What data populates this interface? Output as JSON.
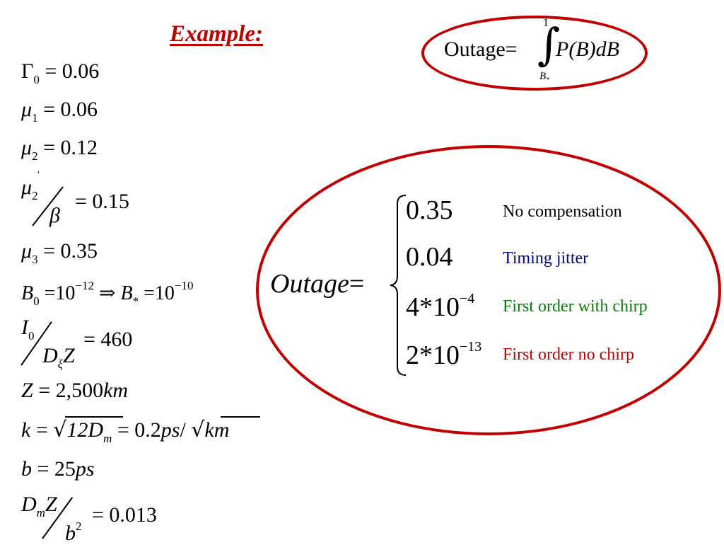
{
  "title": "Example:",
  "params": {
    "gamma0": {
      "sym": "Γ",
      "sub": "0",
      "rhs": "= 0.06"
    },
    "mu1": {
      "sym": "μ",
      "sub": "1",
      "rhs": "= 0.06"
    },
    "mu2": {
      "sym": "μ",
      "sub": "2",
      "rhs": "= 0.12"
    },
    "mu2p": {
      "sym": "μ",
      "sub": "2",
      "prime": "'",
      "den": "β",
      "rhs": "= 0.15"
    },
    "mu3": {
      "sym": "μ",
      "sub": "3",
      "rhs": "= 0.35"
    },
    "b0": {
      "sym": "B",
      "sub": "0",
      "eq": "=10",
      "exp": "−12",
      "arrow": "⇒",
      "sym2": "B",
      "sub2": "*",
      "eq2": "=10",
      "exp2": "−10"
    },
    "i0": {
      "num": "I",
      "numsub": "0",
      "den": "D",
      "densub": "ξ",
      "den2": "Z",
      "rhs": "= 460"
    },
    "z": {
      "sym": "Z",
      "rhs": "= 2,500",
      "unit": "km"
    },
    "k": {
      "sym": "k",
      "eq": "=",
      "rad": "12D",
      "radsub": "m",
      "rhs": "= 0.2",
      "unit": "ps",
      "slash": "/",
      "rad2": "km"
    },
    "b": {
      "sym": "b",
      "rhs": "= 25",
      "unit": "ps"
    },
    "dmz": {
      "num": "D",
      "numsub": "m",
      "num2": "Z",
      "den": "b",
      "densup": "2",
      "rhs": "= 0.013"
    }
  },
  "outage_integral": {
    "lhs": "Outage",
    "eq": "=",
    "upper": "1",
    "lower": "B",
    "lowersub": "*",
    "integrand": "P(B)dB"
  },
  "outage_cases": {
    "lhs": "Outage",
    "eq": "=",
    "cases": [
      {
        "value": "0.35",
        "exp": "",
        "label": "No compensation",
        "color": "#000000"
      },
      {
        "value": "0.04",
        "exp": "",
        "label": "Timing jitter",
        "color": "#00008b"
      },
      {
        "value": "4*10",
        "exp": "−4",
        "label": "First order with chirp",
        "color": "#008000"
      },
      {
        "value": "2*10",
        "exp": "−13",
        "label": "First order no chirp",
        "color": "#c00000"
      }
    ]
  }
}
